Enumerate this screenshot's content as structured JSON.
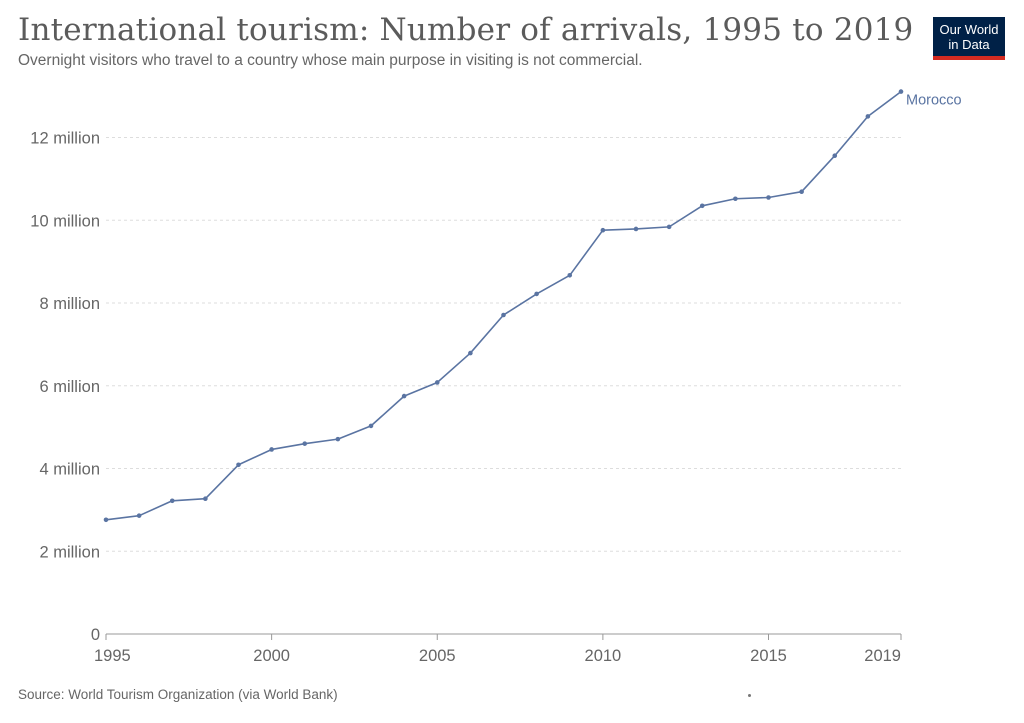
{
  "header": {
    "title": "International tourism: Number of arrivals, 1995 to 2019",
    "subtitle": "Overnight visitors who travel to a country whose main purpose in visiting is not commercial."
  },
  "logo": {
    "line1": "Our World",
    "line2": "in Data"
  },
  "footer": {
    "source": "Source: World Tourism Organization (via World Bank)"
  },
  "colors": {
    "series": "#5a74a2",
    "grid": "#dddddd",
    "axis": "#999999",
    "tick_text": "#666666",
    "logo_bg": "#002147",
    "logo_accent": "#d42b21"
  },
  "chart_data": {
    "type": "line",
    "title": "International tourism: Number of arrivals, 1995 to 2019",
    "xlabel": "",
    "ylabel": "",
    "xlim": [
      1995,
      2019
    ],
    "ylim": [
      0,
      13100000
    ],
    "grid": true,
    "x_ticks": [
      {
        "value": 1995,
        "label": "1995"
      },
      {
        "value": 2000,
        "label": "2000"
      },
      {
        "value": 2005,
        "label": "2005"
      },
      {
        "value": 2010,
        "label": "2010"
      },
      {
        "value": 2015,
        "label": "2015"
      },
      {
        "value": 2019,
        "label": "2019"
      }
    ],
    "y_ticks": [
      {
        "value": 0,
        "label": "0"
      },
      {
        "value": 2000000,
        "label": "2 million"
      },
      {
        "value": 4000000,
        "label": "4 million"
      },
      {
        "value": 6000000,
        "label": "6 million"
      },
      {
        "value": 8000000,
        "label": "8 million"
      },
      {
        "value": 10000000,
        "label": "10 million"
      },
      {
        "value": 12000000,
        "label": "12 million"
      }
    ],
    "series": [
      {
        "name": "Morocco",
        "x": [
          1995,
          1996,
          1997,
          1998,
          1999,
          2000,
          2001,
          2002,
          2003,
          2004,
          2005,
          2006,
          2007,
          2008,
          2009,
          2010,
          2011,
          2012,
          2013,
          2014,
          2015,
          2016,
          2017,
          2018,
          2019
        ],
        "values": [
          2760000,
          2860000,
          3220000,
          3270000,
          4090000,
          4460000,
          4600000,
          4710000,
          5030000,
          5750000,
          6080000,
          6790000,
          7710000,
          8220000,
          8670000,
          9760000,
          9790000,
          9840000,
          10350000,
          10520000,
          10550000,
          10690000,
          11560000,
          12510000,
          13110000
        ]
      }
    ]
  }
}
